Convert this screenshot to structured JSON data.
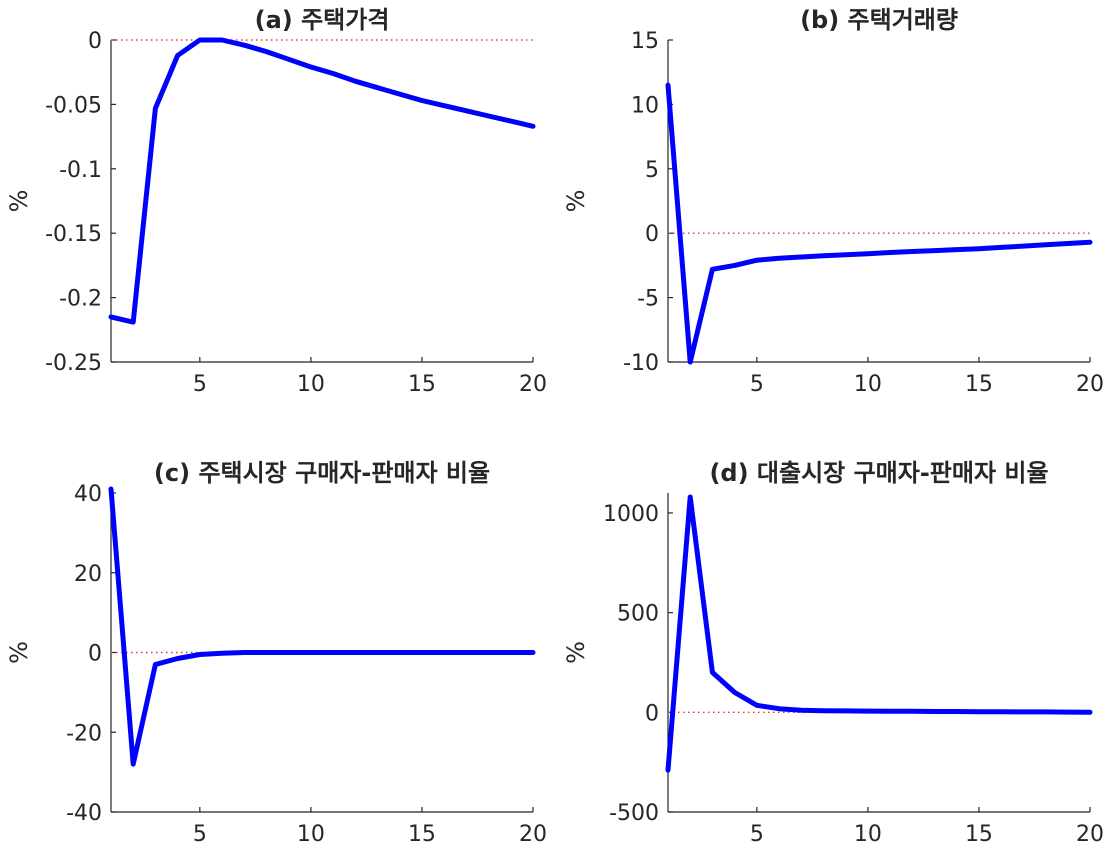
{
  "chart_data": [
    {
      "type": "line",
      "title": "(a) 주택가격",
      "xlabel": "",
      "ylabel": "%",
      "xlim": [
        1,
        20
      ],
      "ylim": [
        -0.25,
        0
      ],
      "xticks": [
        5,
        10,
        15,
        20
      ],
      "yticks": [
        0,
        -0.05,
        -0.1,
        -0.15,
        -0.2,
        -0.25
      ],
      "reference_line": 0,
      "series": [
        {
          "x": [
            1,
            2,
            3,
            4,
            5,
            6,
            7,
            8,
            9,
            10,
            11,
            12,
            13,
            14,
            15,
            16,
            17,
            18,
            19,
            20
          ],
          "y": [
            -0.215,
            -0.219,
            -0.053,
            -0.012,
            0.0,
            0.0,
            -0.004,
            -0.009,
            -0.015,
            -0.021,
            -0.026,
            -0.032,
            -0.037,
            -0.042,
            -0.047,
            -0.051,
            -0.055,
            -0.059,
            -0.063,
            -0.067
          ]
        }
      ]
    },
    {
      "type": "line",
      "title": "(b) 주택거래량",
      "xlabel": "",
      "ylabel": "%",
      "xlim": [
        1,
        20
      ],
      "ylim": [
        -10,
        15
      ],
      "xticks": [
        5,
        10,
        15,
        20
      ],
      "yticks": [
        15,
        10,
        5,
        0,
        -5,
        -10
      ],
      "reference_line": 0,
      "series": [
        {
          "x": [
            1,
            2,
            3,
            4,
            5,
            6,
            7,
            8,
            9,
            10,
            11,
            12,
            13,
            14,
            15,
            16,
            17,
            18,
            19,
            20
          ],
          "y": [
            11.5,
            -10.0,
            -2.8,
            -2.5,
            -2.1,
            -1.95,
            -1.85,
            -1.75,
            -1.68,
            -1.6,
            -1.5,
            -1.42,
            -1.35,
            -1.27,
            -1.2,
            -1.1,
            -1.0,
            -0.9,
            -0.8,
            -0.7
          ]
        }
      ]
    },
    {
      "type": "line",
      "title": "(c) 주택시장 구매자-판매자 비율",
      "xlabel": "",
      "ylabel": "%",
      "xlim": [
        1,
        20
      ],
      "ylim": [
        -40,
        40
      ],
      "xticks": [
        5,
        10,
        15,
        20
      ],
      "yticks": [
        40,
        20,
        0,
        -20,
        -40
      ],
      "reference_line": 0,
      "series": [
        {
          "x": [
            1,
            2,
            3,
            4,
            5,
            6,
            7,
            8,
            9,
            10,
            11,
            12,
            13,
            14,
            15,
            16,
            17,
            18,
            19,
            20
          ],
          "y": [
            41,
            -28,
            -3,
            -1.5,
            -0.5,
            -0.2,
            0,
            0,
            0,
            0,
            0,
            0,
            0,
            0,
            0,
            0,
            0,
            0,
            0,
            0
          ]
        }
      ]
    },
    {
      "type": "line",
      "title": "(d) 대출시장 구매자-판매자 비율",
      "xlabel": "",
      "ylabel": "%",
      "xlim": [
        1,
        20
      ],
      "ylim": [
        -500,
        1100
      ],
      "xticks": [
        5,
        10,
        15,
        20
      ],
      "yticks": [
        1000,
        500,
        0,
        -500
      ],
      "reference_line": 0,
      "series": [
        {
          "x": [
            1,
            2,
            3,
            4,
            5,
            6,
            7,
            8,
            9,
            10,
            11,
            12,
            13,
            14,
            15,
            16,
            17,
            18,
            19,
            20
          ],
          "y": [
            -290,
            1080,
            200,
            100,
            35,
            18,
            10,
            8,
            7,
            6,
            5,
            5,
            4,
            4,
            3,
            3,
            2,
            2,
            1,
            0
          ]
        }
      ]
    }
  ]
}
